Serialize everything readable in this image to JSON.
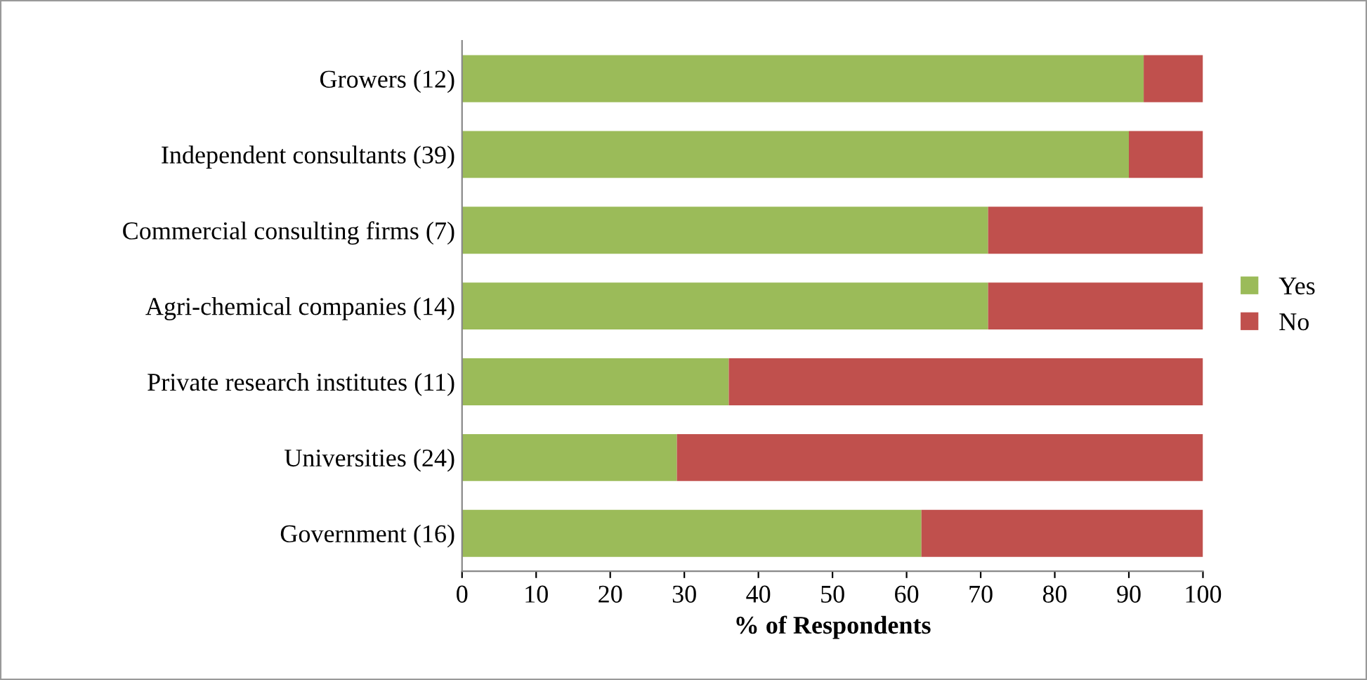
{
  "chart_data": {
    "type": "bar",
    "orientation": "horizontal",
    "stacked": true,
    "categories": [
      "Growers (12)",
      "Independent consultants (39)",
      "Commercial consulting firms (7)",
      "Agri-chemical companies (14)",
      "Private research institutes (11)",
      "Universities (24)",
      "Government (16)"
    ],
    "series": [
      {
        "name": "Yes",
        "color": "#9bbb59",
        "values": [
          92,
          90,
          71,
          71,
          36,
          29,
          62
        ]
      },
      {
        "name": "No",
        "color": "#c0504d",
        "values": [
          8,
          10,
          29,
          29,
          64,
          71,
          38
        ]
      }
    ],
    "xlabel": "% of Respondents",
    "xlim": [
      0,
      100
    ],
    "xticks": [
      0,
      10,
      20,
      30,
      40,
      50,
      60,
      70,
      80,
      90,
      100
    ],
    "grid": false,
    "legend": "right"
  }
}
